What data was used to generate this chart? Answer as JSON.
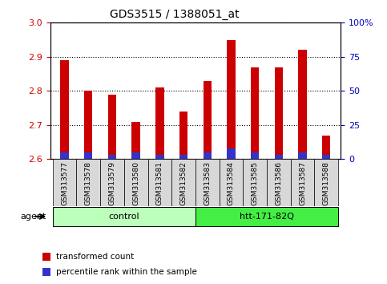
{
  "title": "GDS3515 / 1388051_at",
  "samples": [
    "GSM313577",
    "GSM313578",
    "GSM313579",
    "GSM313580",
    "GSM313581",
    "GSM313582",
    "GSM313583",
    "GSM313584",
    "GSM313585",
    "GSM313586",
    "GSM313587",
    "GSM313588"
  ],
  "transformed_count": [
    2.89,
    2.8,
    2.79,
    2.71,
    2.81,
    2.74,
    2.83,
    2.95,
    2.87,
    2.87,
    2.92,
    2.67
  ],
  "percentile_rank_pct": [
    5,
    5,
    3,
    5,
    3,
    3,
    5,
    8,
    5,
    3,
    5,
    3
  ],
  "ylim_left": [
    2.6,
    3.0
  ],
  "ylim_right": [
    0,
    100
  ],
  "yticks_left": [
    2.6,
    2.7,
    2.8,
    2.9,
    3.0
  ],
  "yticks_right": [
    0,
    25,
    50,
    75,
    100
  ],
  "ytick_labels_right": [
    "0",
    "25",
    "50",
    "75",
    "100%"
  ],
  "bar_color_red": "#cc0000",
  "bar_color_blue": "#3333cc",
  "bar_width": 0.35,
  "baseline": 2.6,
  "groups": [
    {
      "label": "control",
      "start": 0,
      "end": 5,
      "color": "#bbffbb"
    },
    {
      "label": "htt-171-82Q",
      "start": 6,
      "end": 11,
      "color": "#44ee44"
    }
  ],
  "agent_label": "agent",
  "legend_items": [
    {
      "label": "transformed count",
      "color": "#cc0000"
    },
    {
      "label": "percentile rank within the sample",
      "color": "#3333cc"
    }
  ],
  "tick_color_left": "#cc0000",
  "tick_color_right": "#0000bb",
  "xtick_bg": "#d8d8d8",
  "plot_bg": "white"
}
